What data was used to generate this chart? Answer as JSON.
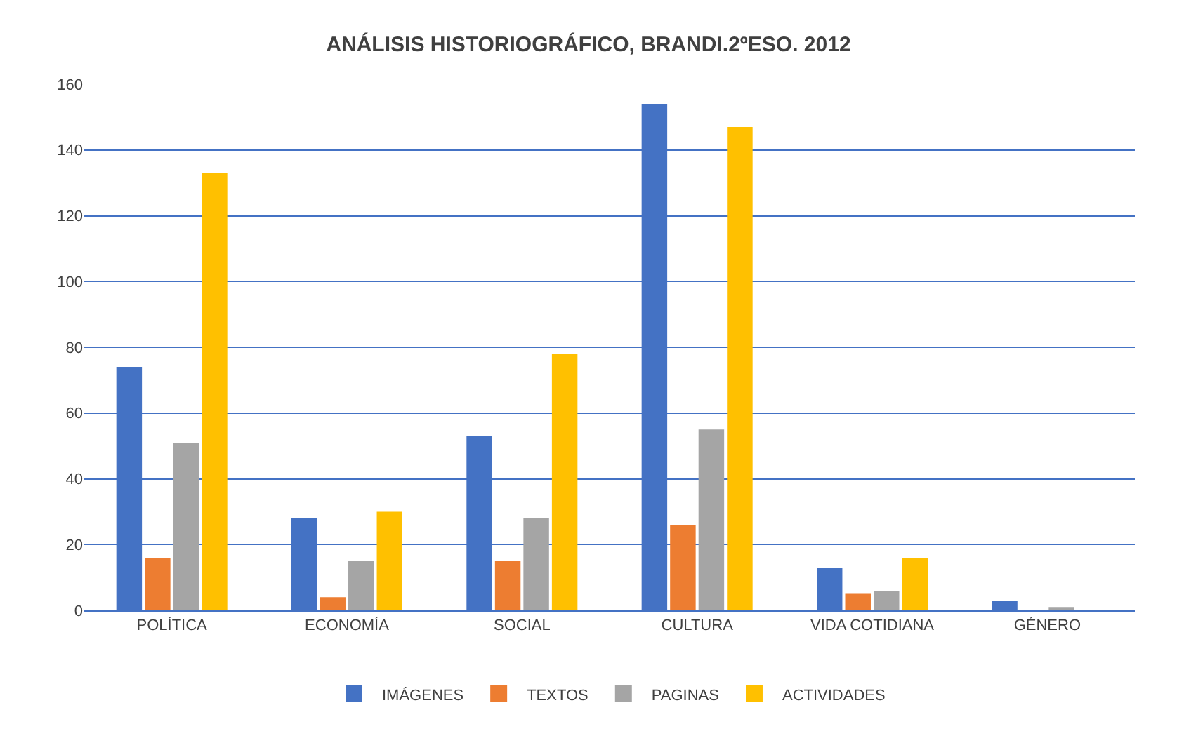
{
  "chart_data": {
    "type": "bar",
    "title": "ANÁLISIS HISTORIOGRÁFICO, BRANDI.2ºESO. 2012",
    "categories": [
      "POLÍTICA",
      "ECONOMÍA",
      "SOCIAL",
      "CULTURA",
      "VIDA COTIDIANA",
      "GÉNERO"
    ],
    "series": [
      {
        "name": "IMÁGENES",
        "color": "#4472c4",
        "values": [
          74,
          28,
          53,
          154,
          13,
          3
        ]
      },
      {
        "name": "TEXTOS",
        "color": "#ed7d31",
        "values": [
          16,
          4,
          15,
          26,
          5,
          0
        ]
      },
      {
        "name": "PAGINAS",
        "color": "#a5a5a5",
        "values": [
          51,
          15,
          28,
          55,
          6,
          1
        ]
      },
      {
        "name": "ACTIVIDADES",
        "color": "#ffc000",
        "values": [
          133,
          30,
          78,
          147,
          16,
          0
        ]
      }
    ],
    "ylim": [
      0,
      160
    ],
    "yticks": [
      0,
      20,
      40,
      60,
      80,
      100,
      120,
      140,
      160
    ],
    "grid": "y",
    "legend": "bottom"
  }
}
